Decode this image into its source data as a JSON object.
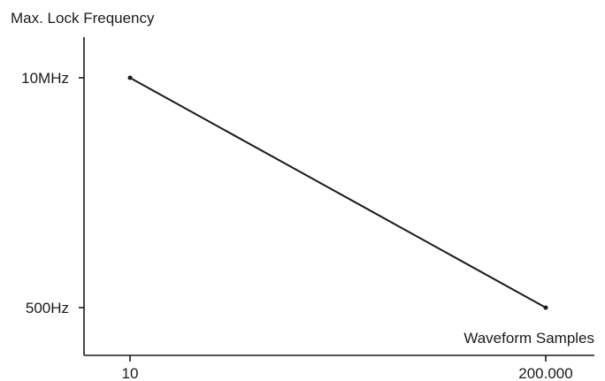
{
  "chart_data": {
    "type": "line",
    "title": "",
    "ylabel": "Max. Lock Frequency",
    "xlabel": "Waveform Samples",
    "x_scale": "log",
    "y_scale": "log",
    "x_ticks": [
      {
        "value": 10,
        "label": "10"
      },
      {
        "value": 200000,
        "label": "200.000"
      }
    ],
    "y_ticks": [
      {
        "value": 10000000,
        "label": "10MHz"
      },
      {
        "value": 500,
        "label": "500Hz"
      }
    ],
    "series": [
      {
        "x": [
          10,
          200000
        ],
        "y": [
          10000000,
          500
        ]
      }
    ],
    "grid": false,
    "line_color": "#1a1a1a"
  }
}
